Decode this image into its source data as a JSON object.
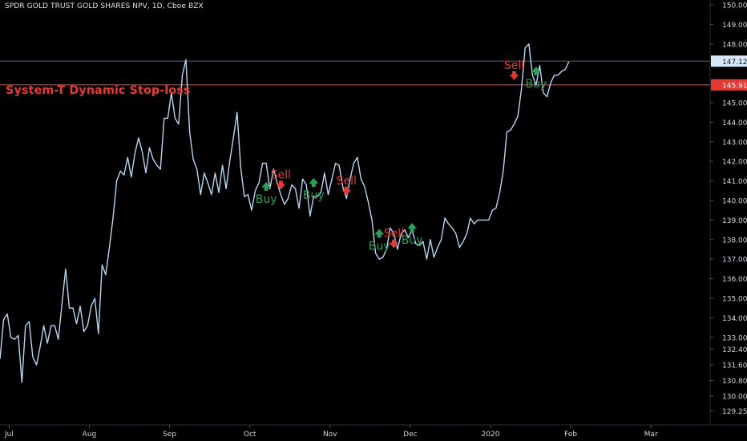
{
  "header": {
    "title": "SPDR GOLD TRUST GOLD SHARES NPV, 1D, Cboe BZX"
  },
  "indicator": {
    "label": "System-T Dynamic Stop-loss",
    "color": "#e53935"
  },
  "colors": {
    "background": "#000000",
    "price_line": "#b7d6f2",
    "stop_line": "#e53935",
    "buy": "#2e9e5b",
    "sell": "#e53935",
    "axis_text": "#d1d4dc"
  },
  "chart_data": {
    "type": "line",
    "title": "SPDR GOLD TRUST GOLD SHARES NPV, 1D, Cboe BZX",
    "ylim": [
      128.86,
      150.2
    ],
    "y_ticks": [
      "150.00",
      "149.00",
      "148.00",
      "147.00",
      "146.00",
      "145.00",
      "144.00",
      "143.00",
      "142.00",
      "141.00",
      "140.00",
      "139.00",
      "138.00",
      "137.00",
      "136.00",
      "135.00",
      "134.00",
      "133.00",
      "132.40",
      "131.60",
      "130.80",
      "130.00",
      "129.25"
    ],
    "x_labels": [
      {
        "label": "Jul",
        "x": 2.5
      },
      {
        "label": "Aug",
        "x": 24.5
      },
      {
        "label": "Sep",
        "x": 46.5
      },
      {
        "label": "Oct",
        "x": 68.5
      },
      {
        "label": "Nov",
        "x": 90.5
      },
      {
        "label": "Dec",
        "x": 112.5
      },
      {
        "label": "2020",
        "x": 134.5
      },
      {
        "label": "Feb",
        "x": 156.5
      },
      {
        "label": "Mar",
        "x": 178.5
      }
    ],
    "series": [
      {
        "values": [
          131.9,
          133.9,
          134.2,
          133.0,
          132.9,
          133.1,
          130.7,
          133.6,
          133.8,
          132.0,
          131.6,
          132.5,
          133.6,
          132.7,
          133.6,
          133.6,
          132.9,
          134.7,
          136.5,
          134.5,
          134.5,
          133.7,
          134.6,
          133.3,
          133.6,
          134.6,
          135.0,
          133.2,
          136.7,
          136.2,
          137.6,
          139.1,
          141.0,
          141.5,
          141.3,
          142.2,
          141.2,
          142.4,
          143.2,
          142.5,
          141.4,
          142.7,
          142.1,
          141.8,
          141.6,
          144.2,
          144.2,
          145.5,
          144.2,
          143.9,
          146.4,
          147.2,
          143.5,
          142.1,
          141.6,
          140.3,
          141.4,
          140.9,
          140.3,
          141.4,
          140.4,
          141.8,
          140.6,
          142.0,
          143.2,
          144.5,
          141.7,
          140.2,
          140.3,
          139.5,
          140.5,
          140.9,
          141.9,
          141.9,
          140.6,
          141.6,
          140.9,
          140.3,
          139.8,
          140.1,
          140.8,
          140.6,
          139.6,
          141.1,
          140.8,
          139.2,
          140.2,
          140.2,
          140.4,
          141.4,
          140.3,
          141.1,
          141.9,
          141.8,
          140.7,
          140.1,
          141.1,
          141.9,
          142.2,
          141.1,
          140.7,
          139.9,
          139.0,
          137.3,
          137.0,
          137.1,
          137.5,
          138.6,
          138.3,
          137.5,
          138.3,
          138.5,
          138.1,
          138.5,
          137.8,
          137.7,
          137.9,
          137.0,
          138.0,
          137.1,
          137.6,
          138.0,
          139.1,
          138.8,
          138.6,
          138.3,
          137.6,
          137.9,
          138.3,
          139.1,
          138.8,
          139.0,
          139.0,
          139.0,
          139.0,
          139.5,
          139.6,
          140.4,
          141.5,
          143.5,
          143.6,
          143.9,
          144.3,
          145.7,
          147.8,
          148.0,
          146.4,
          145.9,
          146.9,
          145.5,
          145.3,
          146.0,
          146.4,
          146.4,
          146.6,
          146.7,
          147.1
        ]
      }
    ],
    "last_price": {
      "value": 147.12,
      "label": "147.12"
    },
    "stop_loss": {
      "value": 145.91,
      "label": "145.91"
    },
    "signals": [
      {
        "type": "buy",
        "label": "Buy",
        "x": 73,
        "value": 140.7
      },
      {
        "type": "sell",
        "label": "Sell",
        "x": 77,
        "value": 140.8
      },
      {
        "type": "buy",
        "label": "Buy",
        "x": 86,
        "value": 140.9
      },
      {
        "type": "sell",
        "label": "Sell",
        "x": 95,
        "value": 140.5
      },
      {
        "type": "buy",
        "label": "Buy",
        "x": 104,
        "value": 138.3
      },
      {
        "type": "sell",
        "label": "Sell",
        "x": 108,
        "value": 137.8
      },
      {
        "type": "buy",
        "label": "Buy",
        "x": 113,
        "value": 138.6
      },
      {
        "type": "sell",
        "label": "Sell",
        "x": 141,
        "value": 146.4
      },
      {
        "type": "buy",
        "label": "Buy",
        "x": 147,
        "value": 146.6
      }
    ]
  }
}
